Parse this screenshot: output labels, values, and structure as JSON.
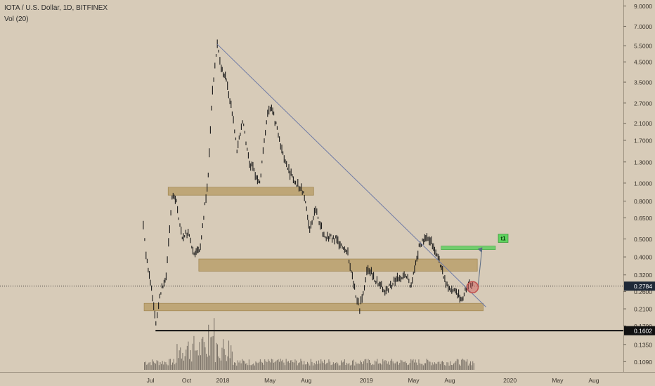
{
  "header": {
    "title": "IOTA / U.S. Dollar, 1D, BITFINEX",
    "volume_label": "Vol (20)"
  },
  "colors": {
    "background": "#d7cbb8",
    "candle": "#1a1a1a",
    "trendline": "#6e7aa6",
    "zone_fill": "#b69a62",
    "target_zone": "#5fce5f",
    "current_price_badge": "#1f2937",
    "marker": "#d46a66"
  },
  "chart_data": {
    "type": "candlestick",
    "symbol": "IOTA / U.S. Dollar",
    "timeframe": "1D",
    "exchange": "BITFINEX",
    "y_scale": "log",
    "ylim": [
      0.096,
      9.0
    ],
    "y_ticks": [
      "9.0000",
      "7.0000",
      "5.5000",
      "4.5000",
      "3.5000",
      "2.7000",
      "2.1000",
      "1.7000",
      "1.3000",
      "1.0000",
      "0.8000",
      "0.6500",
      "0.5000",
      "0.4000",
      "0.3200",
      "0.2600",
      "0.2100",
      "0.1700",
      "0.1350",
      "0.1090"
    ],
    "x_ticks": [
      {
        "label": "Jul",
        "date": "2017-07"
      },
      {
        "label": "Oct",
        "date": "2017-10"
      },
      {
        "label": "2018",
        "date": "2018-01"
      },
      {
        "label": "May",
        "date": "2018-05"
      },
      {
        "label": "Aug",
        "date": "2018-08"
      },
      {
        "label": "2019",
        "date": "2019-01"
      },
      {
        "label": "May",
        "date": "2019-05"
      },
      {
        "label": "Aug",
        "date": "2019-08"
      },
      {
        "label": "2020",
        "date": "2020-01"
      },
      {
        "label": "May",
        "date": "2020-05"
      },
      {
        "label": "Aug",
        "date": "2020-08"
      }
    ],
    "price_path": [
      [
        "2017-06-13",
        0.6
      ],
      [
        "2017-06-20",
        0.4
      ],
      [
        "2017-07-01",
        0.3
      ],
      [
        "2017-07-15",
        0.17
      ],
      [
        "2017-07-25",
        0.25
      ],
      [
        "2017-08-10",
        0.32
      ],
      [
        "2017-08-25",
        0.85
      ],
      [
        "2017-09-05",
        0.8
      ],
      [
        "2017-09-20",
        0.5
      ],
      [
        "2017-10-05",
        0.55
      ],
      [
        "2017-10-20",
        0.42
      ],
      [
        "2017-11-05",
        0.45
      ],
      [
        "2017-11-25",
        1.1
      ],
      [
        "2017-12-06",
        3.2
      ],
      [
        "2017-12-18",
        5.5
      ],
      [
        "2017-12-28",
        4.2
      ],
      [
        "2018-01-10",
        3.6
      ],
      [
        "2018-01-25",
        2.4
      ],
      [
        "2018-02-06",
        1.5
      ],
      [
        "2018-02-20",
        2.2
      ],
      [
        "2018-03-10",
        1.3
      ],
      [
        "2018-04-05",
        1.0
      ],
      [
        "2018-04-25",
        2.4
      ],
      [
        "2018-05-05",
        2.6
      ],
      [
        "2018-05-25",
        1.7
      ],
      [
        "2018-06-15",
        1.2
      ],
      [
        "2018-07-05",
        1.0
      ],
      [
        "2018-07-25",
        0.9
      ],
      [
        "2018-08-10",
        0.55
      ],
      [
        "2018-08-25",
        0.72
      ],
      [
        "2018-09-15",
        0.52
      ],
      [
        "2018-10-15",
        0.5
      ],
      [
        "2018-11-15",
        0.42
      ],
      [
        "2018-12-05",
        0.25
      ],
      [
        "2018-12-15",
        0.21
      ],
      [
        "2019-01-05",
        0.35
      ],
      [
        "2019-01-25",
        0.3
      ],
      [
        "2019-02-20",
        0.26
      ],
      [
        "2019-03-15",
        0.3
      ],
      [
        "2019-04-10",
        0.32
      ],
      [
        "2019-04-25",
        0.28
      ],
      [
        "2019-05-15",
        0.45
      ],
      [
        "2019-06-01",
        0.52
      ],
      [
        "2019-06-15",
        0.48
      ],
      [
        "2019-07-05",
        0.38
      ],
      [
        "2019-07-25",
        0.28
      ],
      [
        "2019-08-15",
        0.26
      ],
      [
        "2019-09-01",
        0.24
      ],
      [
        "2019-09-20",
        0.29
      ],
      [
        "2019-10-01",
        0.278
      ]
    ],
    "current_price": "0.2784",
    "support_level": "0.1602",
    "trendline": {
      "start": [
        "2017-12-18",
        5.6
      ],
      "end": [
        "2019-11-01",
        0.215
      ]
    },
    "zones": [
      {
        "from": "2017-08-15",
        "to": "2018-08-20",
        "low": 0.86,
        "high": 0.95
      },
      {
        "from": "2017-11-01",
        "to": "2019-10-10",
        "low": 0.335,
        "high": 0.39
      },
      {
        "from": "2017-06-15",
        "to": "2019-10-25",
        "low": 0.205,
        "high": 0.225
      }
    ],
    "target": {
      "label": "t1",
      "from": "2019-07-10",
      "to": "2019-11-25",
      "low": 0.438,
      "high": 0.458
    },
    "marker": {
      "date": "2019-09-28",
      "price": 0.27
    },
    "projection": {
      "from": [
        "2019-10-01",
        0.27
      ],
      "to": [
        "2019-10-22",
        0.45
      ]
    }
  }
}
